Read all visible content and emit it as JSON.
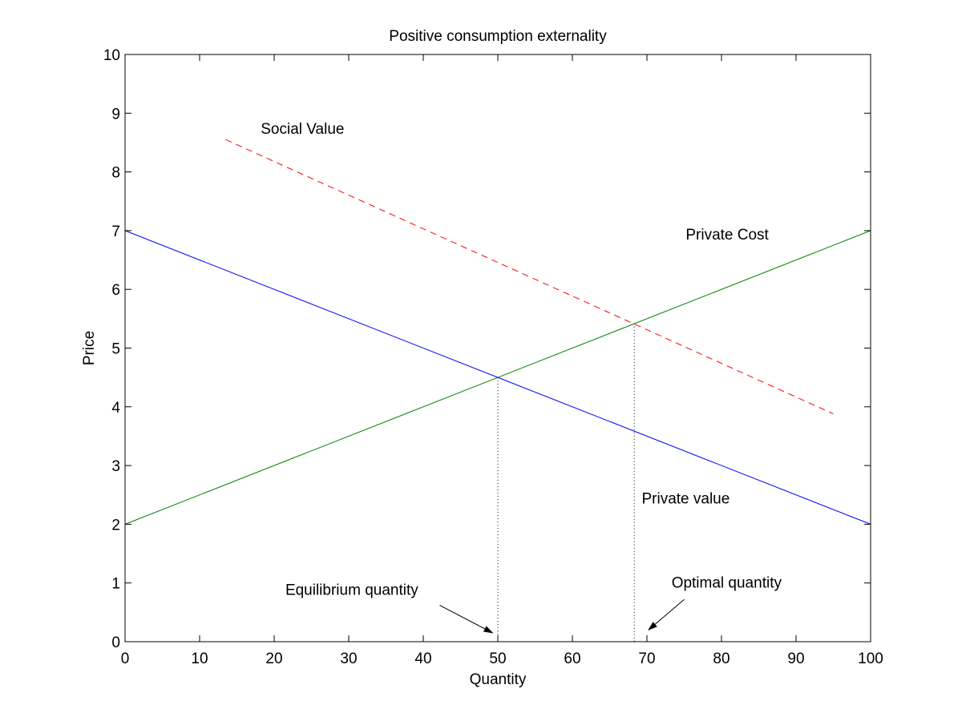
{
  "chart_data": {
    "type": "line",
    "title": "Positive consumption externality",
    "xlabel": "Quantity",
    "ylabel": "Price",
    "xlim": [
      0,
      100
    ],
    "ylim": [
      0,
      10
    ],
    "xticks": [
      0,
      10,
      20,
      30,
      40,
      50,
      60,
      70,
      80,
      90,
      100
    ],
    "yticks": [
      0,
      1,
      2,
      3,
      4,
      5,
      6,
      7,
      8,
      9,
      10
    ],
    "grid": false,
    "series": [
      {
        "name": "Private value",
        "color": "#0000ff",
        "style": "solid",
        "x": [
          0,
          100
        ],
        "y": [
          7,
          2
        ]
      },
      {
        "name": "Private Cost",
        "color": "#008000",
        "style": "solid",
        "x": [
          0,
          100
        ],
        "y": [
          2,
          7
        ]
      },
      {
        "name": "Social Value",
        "color": "#ff0000",
        "style": "dashed",
        "x": [
          13.5,
          95
        ],
        "y": [
          8.55,
          3.88
        ]
      }
    ],
    "vertical_markers": [
      {
        "name": "equilibrium",
        "x": 50,
        "y": 4.5,
        "color": "#000000",
        "style": "dotted"
      },
      {
        "name": "optimal",
        "x": 68.3,
        "y": 5.42,
        "color": "#000000",
        "style": "dotted"
      }
    ],
    "annotations": [
      {
        "name": "social-value-label",
        "text": "Social Value",
        "x": 18.2,
        "y": 8.65
      },
      {
        "name": "private-cost-label",
        "text": "Private Cost",
        "x": 75.2,
        "y": 6.85
      },
      {
        "name": "private-value-label",
        "text": "Private value",
        "x": 69.3,
        "y": 2.35
      },
      {
        "name": "equilibrium-quantity-label",
        "text": "Equilibrium quantity",
        "x": 21.5,
        "y": 0.8,
        "arrow_from": [
          42.2,
          0.62
        ],
        "arrow_to": [
          49.3,
          0.15
        ]
      },
      {
        "name": "optimal-quantity-label",
        "text": "Optimal quantity",
        "x": 73.3,
        "y": 0.92,
        "arrow_from": [
          75,
          0.72
        ],
        "arrow_to": [
          70.2,
          0.2
        ]
      }
    ]
  }
}
